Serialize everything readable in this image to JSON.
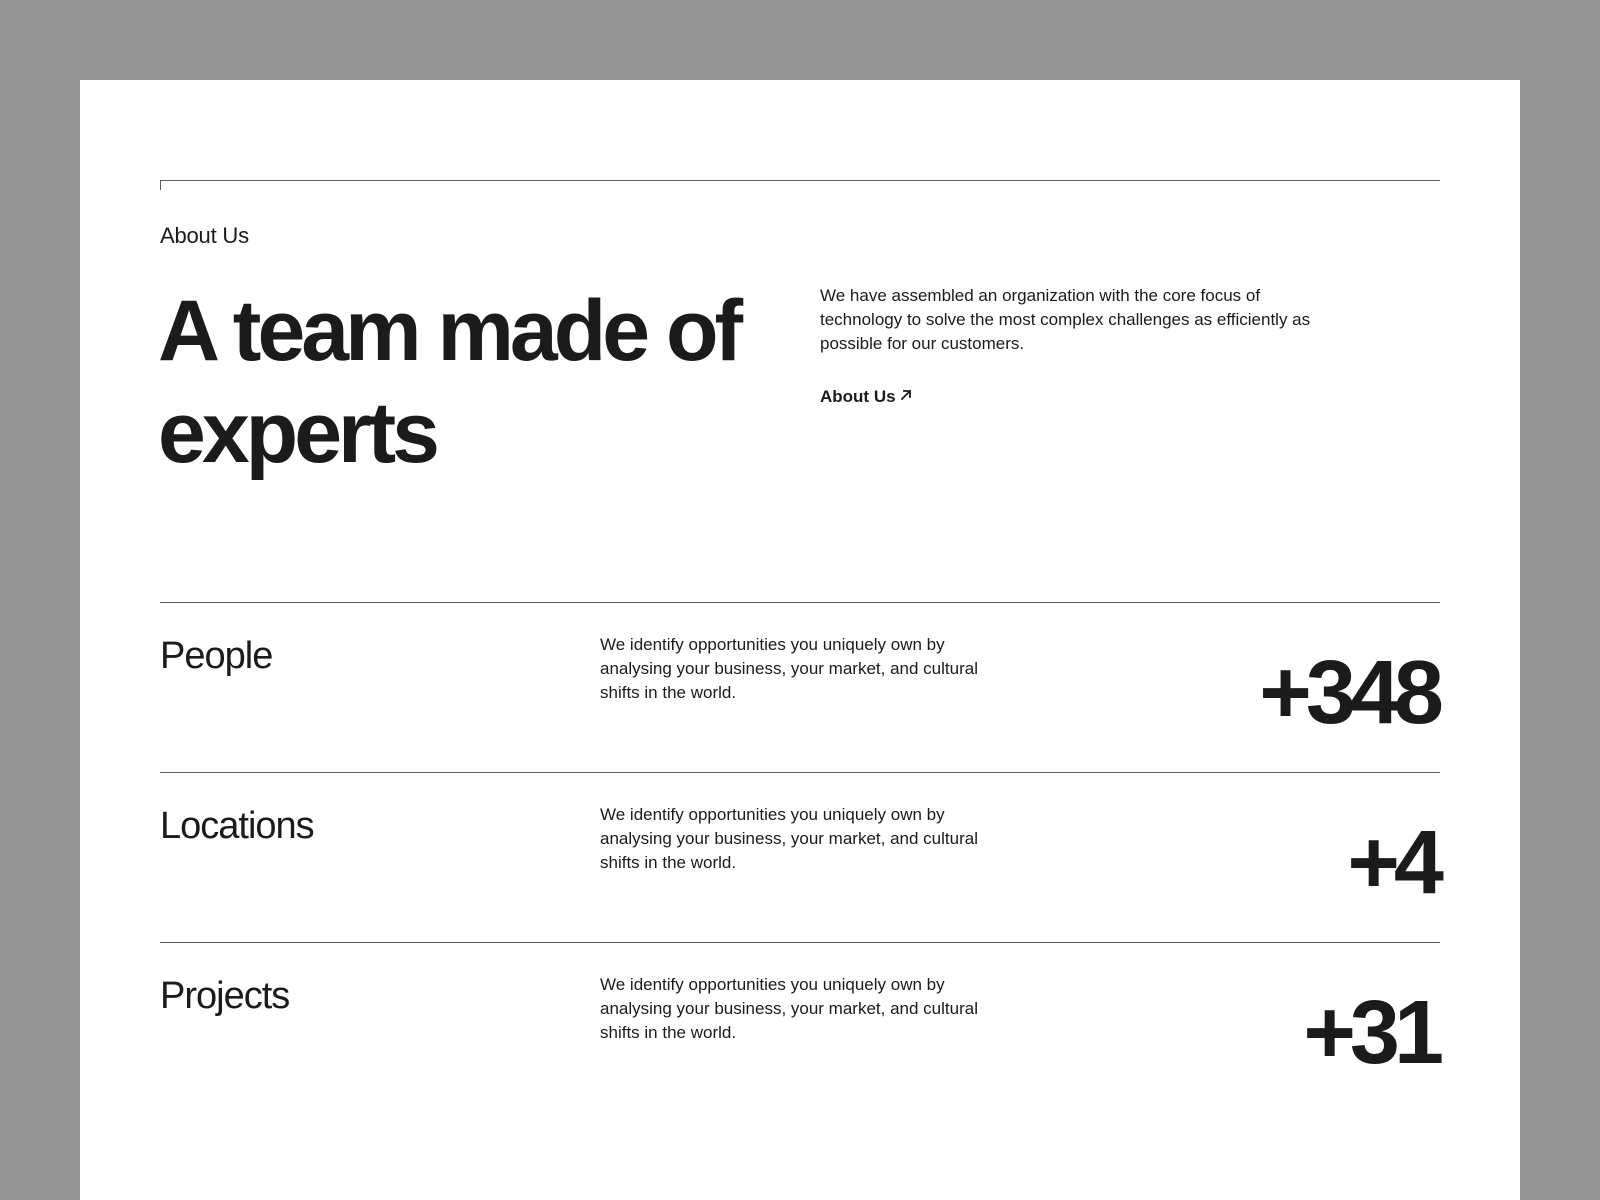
{
  "header": {
    "eyebrow": "About Us",
    "headline": "A team made of experts"
  },
  "intro": {
    "text": "We have assembled an organization with the core focus of technology to solve the most complex challenges as efficiently as possible for our customers.",
    "link_label": "About Us",
    "link_icon": "arrow-up-right-icon"
  },
  "stats": [
    {
      "label": "People",
      "description": "We identify opportunities you uniquely own by analysing your business, your market, and cultural shifts in the world.",
      "value": "+348"
    },
    {
      "label": "Locations",
      "description": "We identify opportunities you uniquely own by analysing your business, your market, and cultural shifts in the world.",
      "value": "+4"
    },
    {
      "label": "Projects",
      "description": "We identify opportunities you uniquely own by analysing your business, your market, and cultural shifts in the world.",
      "value": "+31"
    }
  ],
  "colors": {
    "backdrop": "#959595",
    "canvas": "#ffffff",
    "text": "#1b1b1b",
    "rule": "#5c5c5c"
  }
}
